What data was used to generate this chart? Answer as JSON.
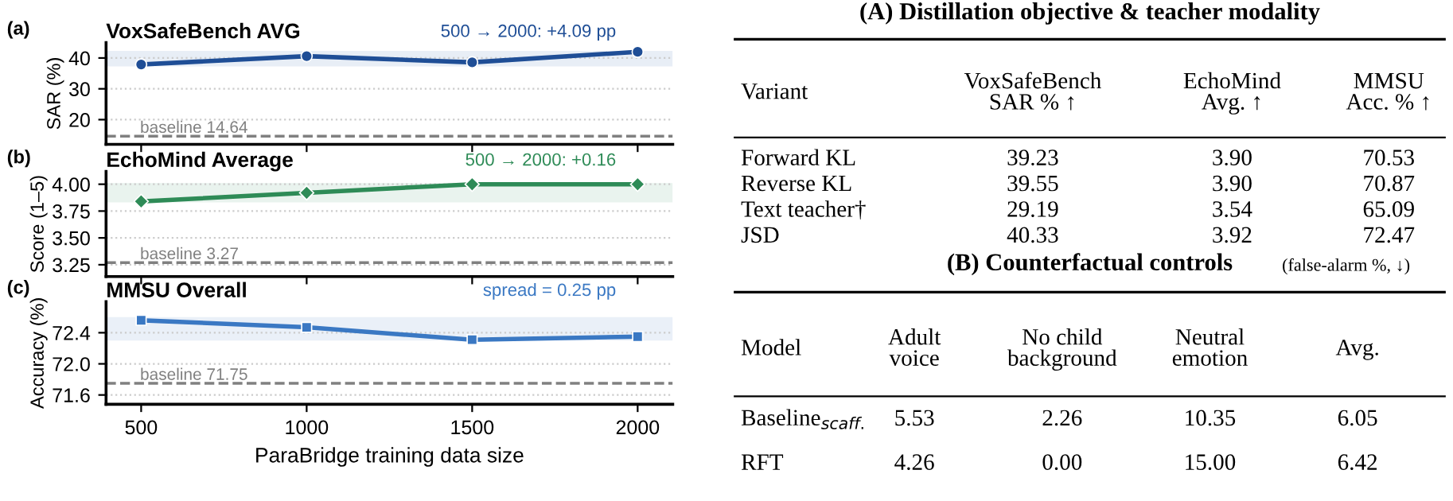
{
  "chart_data": [
    {
      "type": "line",
      "title": "VoxSafeBench AVG",
      "ylabel": "SAR (%)",
      "annotations": [
        "(a)",
        "500 → 2000: +4.09 pp"
      ],
      "x": [
        500,
        1000,
        1500,
        2000
      ],
      "xlim": [
        394,
        2106
      ],
      "xticks": [
        500,
        1000,
        1500,
        2000
      ],
      "ylim": [
        12,
        45
      ],
      "yticks": [
        20,
        30,
        40
      ],
      "tick_labels": "y",
      "grid": "y",
      "marker": "circle",
      "line_style": "solid",
      "series": [
        {
          "color": "#1f4e96",
          "values": [
            37.9,
            40.6,
            38.6,
            42.0
          ]
        }
      ],
      "ref_lines": [
        {
          "axis": "y",
          "value": 14.64,
          "label": "baseline 14.64",
          "color": "#808080",
          "line_style": "dashed"
        }
      ],
      "bands": [
        {
          "axis": "y",
          "from": 37.3,
          "to": 42.3,
          "color": "#e8eef6"
        }
      ]
    },
    {
      "type": "line",
      "title": "EchoMind Average",
      "ylabel": "Score (1–5)",
      "annotations": [
        "(b)",
        "500 → 2000: +0.16"
      ],
      "x": [
        500,
        1000,
        1500,
        2000
      ],
      "xlim": [
        394,
        2106
      ],
      "xticks": [
        500,
        1000,
        1500,
        2000
      ],
      "ylim": [
        3.14,
        4.12
      ],
      "yticks": [
        {
          "value": 3.25,
          "label": "3.25"
        },
        {
          "value": 3.5,
          "label": "3.50"
        },
        {
          "value": 3.75,
          "label": "3.75"
        },
        {
          "value": 4.0,
          "label": "4.00"
        }
      ],
      "tick_labels": "y",
      "grid": "y",
      "marker": "diamond",
      "line_style": "solid",
      "series": [
        {
          "color": "#2e8b57",
          "values": [
            3.84,
            3.92,
            4.0,
            4.0
          ]
        }
      ],
      "ref_lines": [
        {
          "axis": "y",
          "value": 3.27,
          "label": "baseline 3.27",
          "color": "#808080",
          "line_style": "dashed"
        }
      ],
      "bands": [
        {
          "axis": "y",
          "from": 3.83,
          "to": 4.01,
          "color": "#e9f3ee"
        }
      ]
    },
    {
      "type": "line",
      "title": "MMSU Overall",
      "ylabel": "Accuracy (%)",
      "xlabel": "ParaBridge training data size",
      "annotations": [
        "(c)",
        "spread = 0.25 pp"
      ],
      "x": [
        500,
        1000,
        1500,
        2000
      ],
      "xlim": [
        394,
        2106
      ],
      "xticks": [
        500,
        1000,
        1500,
        2000
      ],
      "ylim": [
        71.48,
        72.8
      ],
      "yticks": [
        71.6,
        {
          "value": 72.0,
          "label": "72.0"
        },
        72.4
      ],
      "grid": "y",
      "marker": "square",
      "line_style": "solid",
      "series": [
        {
          "color": "#3a78c3",
          "values": [
            72.56,
            72.47,
            72.31,
            72.35
          ]
        }
      ],
      "ref_lines": [
        {
          "axis": "y",
          "value": 71.75,
          "label": "baseline 71.75",
          "color": "#808080",
          "line_style": "dashed"
        }
      ],
      "bands": [
        {
          "axis": "y",
          "from": 72.3,
          "to": 72.6,
          "color": "#eaf0f8"
        }
      ]
    },
    {
      "type": "other",
      "title": "(A) Distillation objective & teacher modality",
      "categories": [
        "Variant",
        "VoxSafeBench\nSAR % ↑",
        "EchoMind\nAvg. ↑",
        "MMSU\nAcc. % ↑"
      ],
      "y_categories": [
        "Forward KL",
        "Reverse KL",
        "Text teacher†",
        "JSD"
      ],
      "cell_labels": [
        [
          "39.23",
          "3.90",
          "70.53"
        ],
        [
          "39.55",
          "3.90",
          "70.87"
        ],
        [
          "29.19",
          "3.54",
          "65.09"
        ],
        [
          "40.33",
          "3.92",
          "72.47"
        ]
      ]
    },
    {
      "type": "other",
      "title": "(B) Counterfactual controls",
      "subtitle": "(false-alarm %, ↓)",
      "categories": [
        "Model",
        "Adult\nvoice",
        "No child\nbackground",
        "Neutral\nemotion",
        "Avg."
      ],
      "y_categories": [
        "Baseline$_{scaff.}$",
        "RFT"
      ],
      "cell_labels": [
        [
          "5.53",
          "2.26",
          "10.35",
          "6.05"
        ],
        [
          "4.26",
          "0.00",
          "15.00",
          "6.42"
        ]
      ]
    }
  ]
}
